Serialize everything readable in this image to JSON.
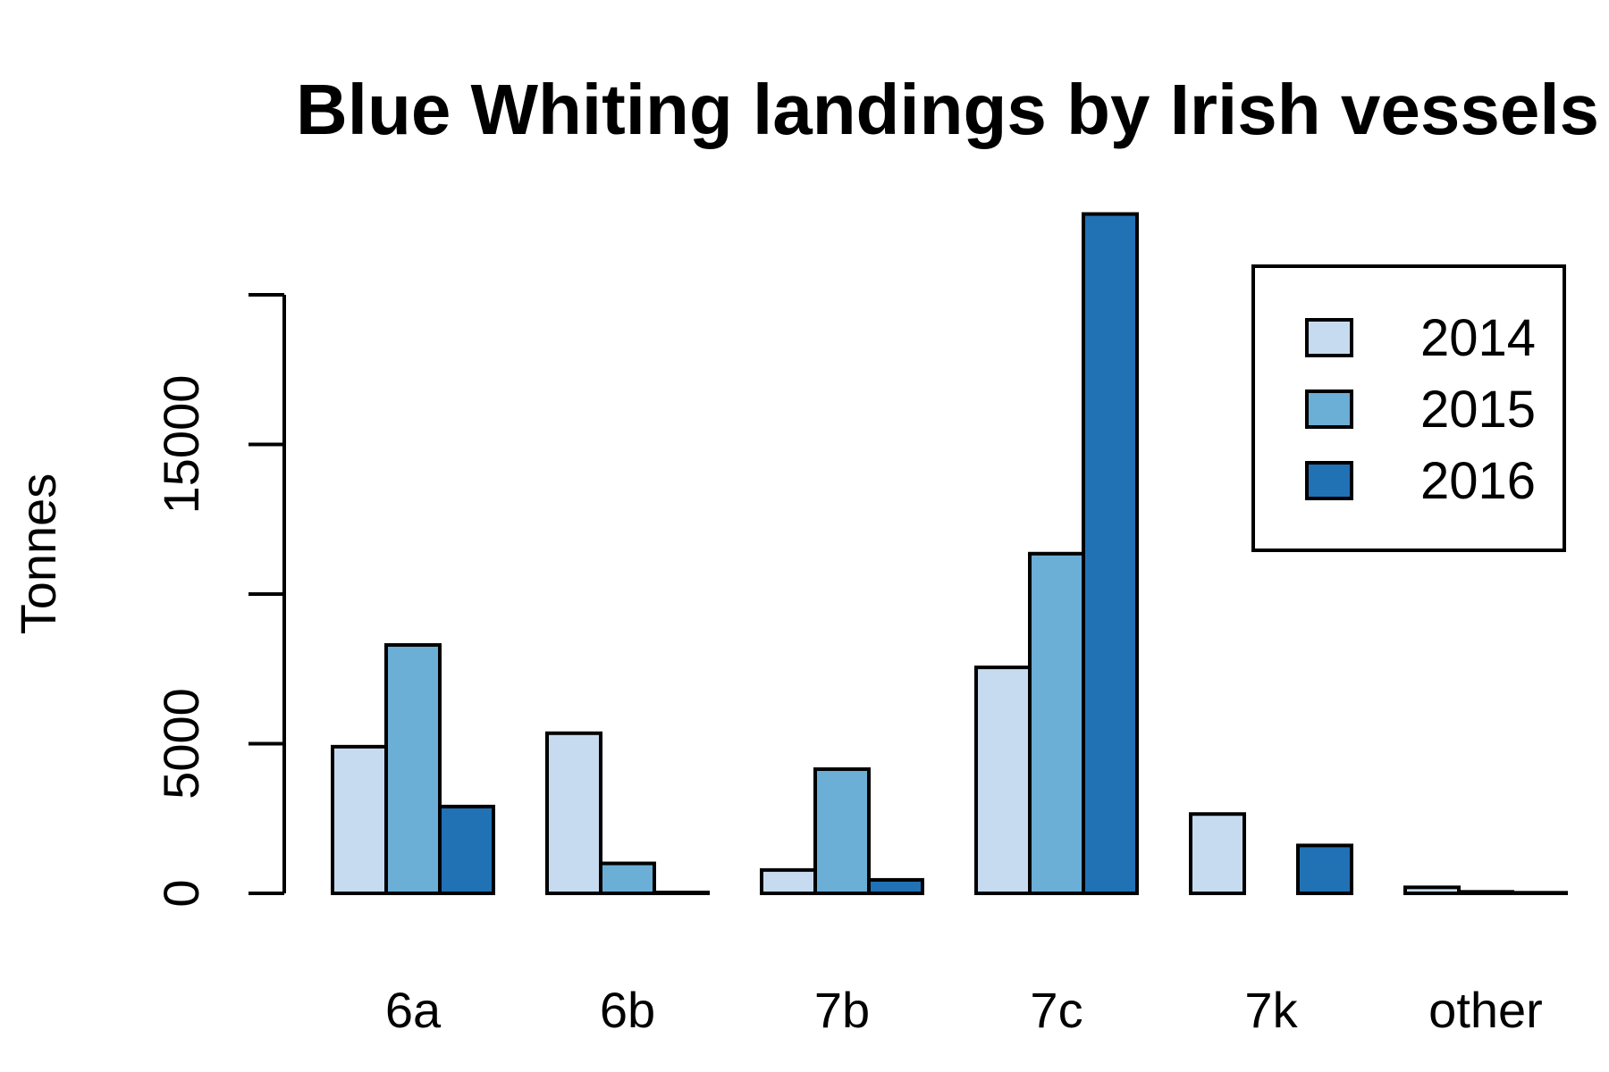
{
  "chart_data": {
    "type": "bar",
    "title": "Blue Whiting landings by Irish vessels",
    "xlabel": "",
    "ylabel": "Tonnes",
    "categories": [
      "6a",
      "6b",
      "7b",
      "7c",
      "7k",
      "other"
    ],
    "series": [
      {
        "name": "2014",
        "color": "#c6dbef",
        "values": [
          4900,
          5350,
          780,
          7550,
          2650,
          200
        ]
      },
      {
        "name": "2015",
        "color": "#6baed6",
        "values": [
          8300,
          1000,
          4150,
          11350,
          0,
          50
        ]
      },
      {
        "name": "2016",
        "color": "#2171b5",
        "values": [
          2900,
          30,
          450,
          22700,
          1600,
          20
        ]
      }
    ],
    "yticks": [
      0,
      5000,
      15000
    ],
    "yaxis_max_tick": 20000,
    "ylim": [
      0,
      22700
    ],
    "legend_position": "top-right",
    "grid": false
  }
}
